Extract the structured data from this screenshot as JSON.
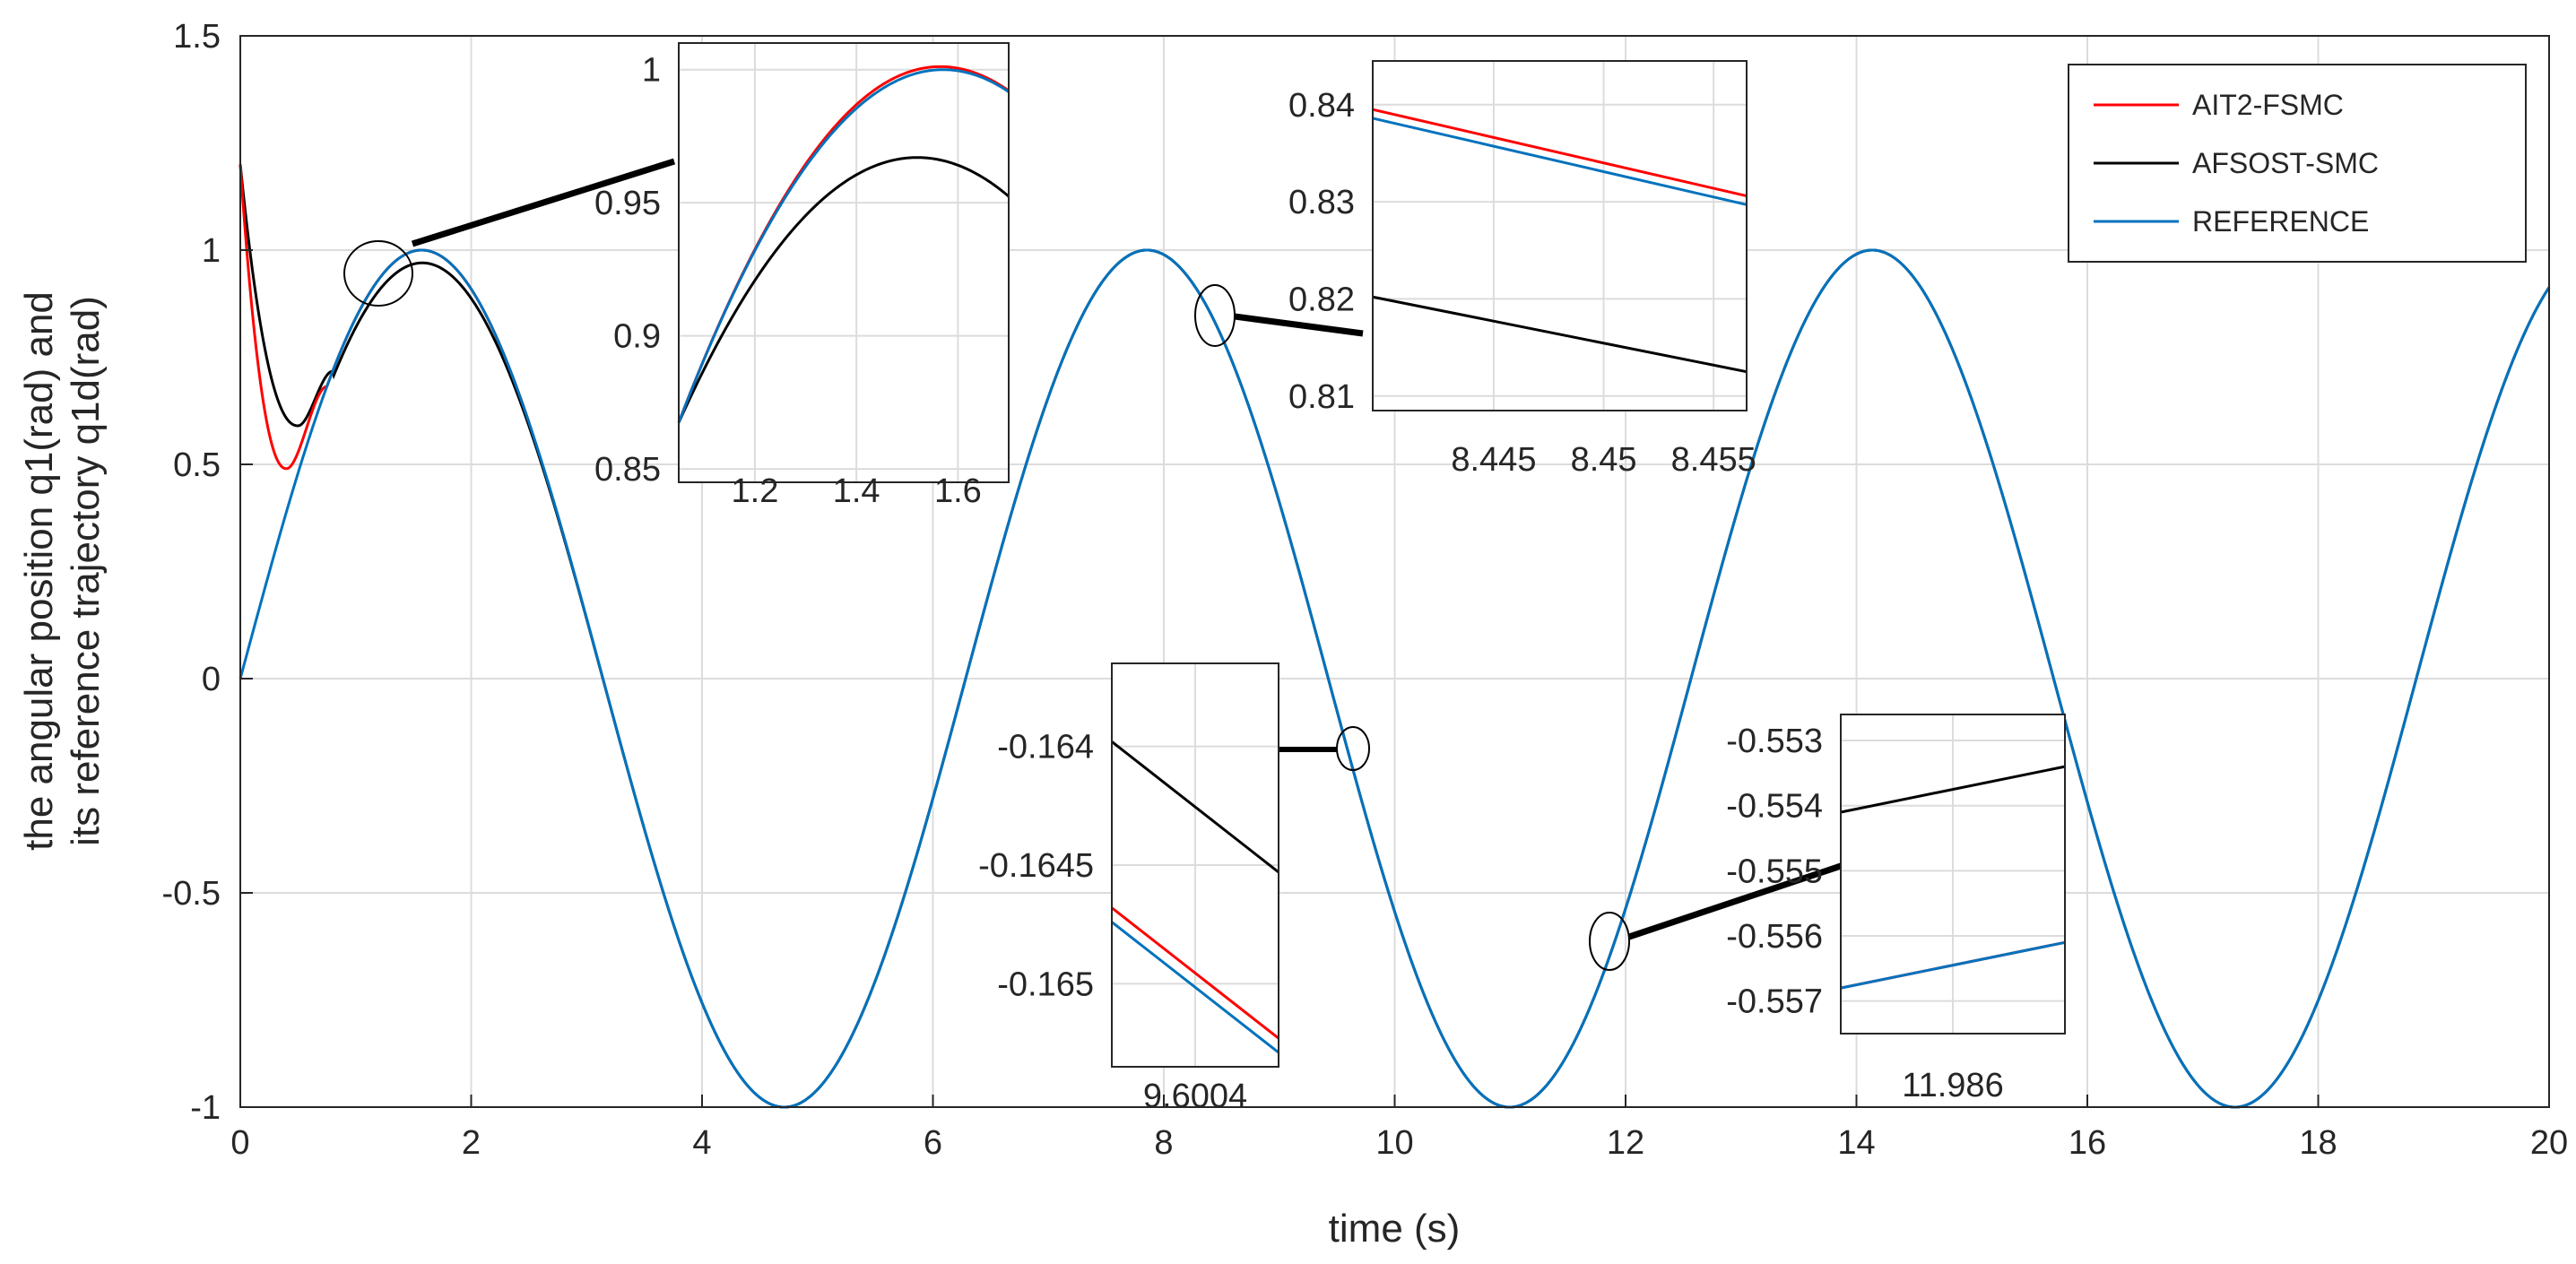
{
  "chart_data": {
    "type": "line",
    "title": "",
    "xlabel": "time (s)",
    "ylabel_lines": [
      "the angular position q1(rad) and",
      "its reference trajectory q1d(rad)"
    ],
    "xlim": [
      0,
      20
    ],
    "ylim": [
      -1,
      1.5
    ],
    "grid": true,
    "legend_position": "top-right",
    "xticks": [
      "0",
      "2",
      "4",
      "6",
      "8",
      "10",
      "12",
      "14",
      "16",
      "18",
      "20"
    ],
    "yticks": [
      "-1",
      "-0.5",
      "0",
      "0.5",
      "1",
      "1.5"
    ],
    "reference_signal": {
      "amplitude": 1,
      "omega": 1,
      "phase": 0,
      "function": "sin(t)"
    },
    "series": [
      {
        "name": "AIT2-FSMC",
        "color": "#ff0000",
        "initial": 1.2,
        "transient_min": {
          "t": 0.4,
          "y": 0.49
        },
        "converges_at": 0.75
      },
      {
        "name": "AFSOST-SMC",
        "color": "#000000",
        "initial": 1.2,
        "transient_min": {
          "t": 0.5,
          "y": 0.59
        },
        "converges_at": 0.8
      },
      {
        "name": "REFERENCE",
        "color": "#0072bd"
      }
    ],
    "insets": [
      {
        "name": "inset-1",
        "xlim": [
          1.05,
          1.7
        ],
        "ylim": [
          0.845,
          1.01
        ],
        "xticks": [
          "1.2",
          "1.4",
          "1.6"
        ],
        "xtick_values": [
          1.2,
          1.4,
          1.6
        ],
        "yticks": [
          "0.85",
          "0.9",
          "0.95",
          "1"
        ],
        "ytick_values": [
          0.85,
          0.9,
          0.95,
          1.0
        ],
        "black_peak": {
          "t": 1.52,
          "y": 0.967
        }
      },
      {
        "name": "inset-2",
        "xlim": [
          8.4395,
          8.4565
        ],
        "ylim": [
          0.8085,
          0.8445
        ],
        "xticks": [
          "8.445",
          "8.45",
          "8.455"
        ],
        "xtick_values": [
          8.445,
          8.45,
          8.455
        ],
        "yticks": [
          "0.81",
          "0.82",
          "0.83",
          "0.84"
        ],
        "ytick_values": [
          0.81,
          0.82,
          0.83,
          0.84
        ],
        "red": [
          [
            8.4395,
            0.8395
          ],
          [
            8.4565,
            0.8306
          ]
        ],
        "blue": [
          [
            8.4395,
            0.8386
          ],
          [
            8.4565,
            0.8297
          ]
        ],
        "black": [
          [
            8.4395,
            0.8202
          ],
          [
            8.4565,
            0.8125
          ]
        ]
      },
      {
        "name": "inset-3",
        "xlim": [
          9.6003,
          9.6005
        ],
        "ylim": [
          -0.16535,
          -0.16365
        ],
        "xticks": [
          "9.6004"
        ],
        "xtick_values": [
          9.6004
        ],
        "yticks": [
          "-0.164",
          "-0.1645",
          "-0.165"
        ],
        "ytick_values": [
          -0.164,
          -0.1645,
          -0.165
        ],
        "red": [
          [
            9.6003,
            -0.16468
          ],
          [
            9.6005,
            -0.16523
          ]
        ],
        "blue": [
          [
            9.6003,
            -0.16474
          ],
          [
            9.6005,
            -0.16529
          ]
        ],
        "black": [
          [
            9.6003,
            -0.16398
          ],
          [
            9.6005,
            -0.16453
          ]
        ]
      },
      {
        "name": "inset-4",
        "xlim": [
          11.9855,
          11.9865
        ],
        "ylim": [
          -0.5575,
          -0.5526
        ],
        "xticks": [
          "11.986"
        ],
        "xtick_values": [
          11.986
        ],
        "yticks": [
          "-0.553",
          "-0.554",
          "-0.555",
          "-0.556",
          "-0.557"
        ],
        "ytick_values": [
          -0.553,
          -0.554,
          -0.555,
          -0.556,
          -0.557
        ],
        "red": [
          [
            11.9855,
            -0.5568
          ],
          [
            11.9865,
            -0.5561
          ]
        ],
        "blue": [
          [
            11.9855,
            -0.5568
          ],
          [
            11.9865,
            -0.5561
          ]
        ],
        "black": [
          [
            11.9855,
            -0.5541
          ],
          [
            11.9865,
            -0.5534
          ]
        ]
      }
    ]
  }
}
